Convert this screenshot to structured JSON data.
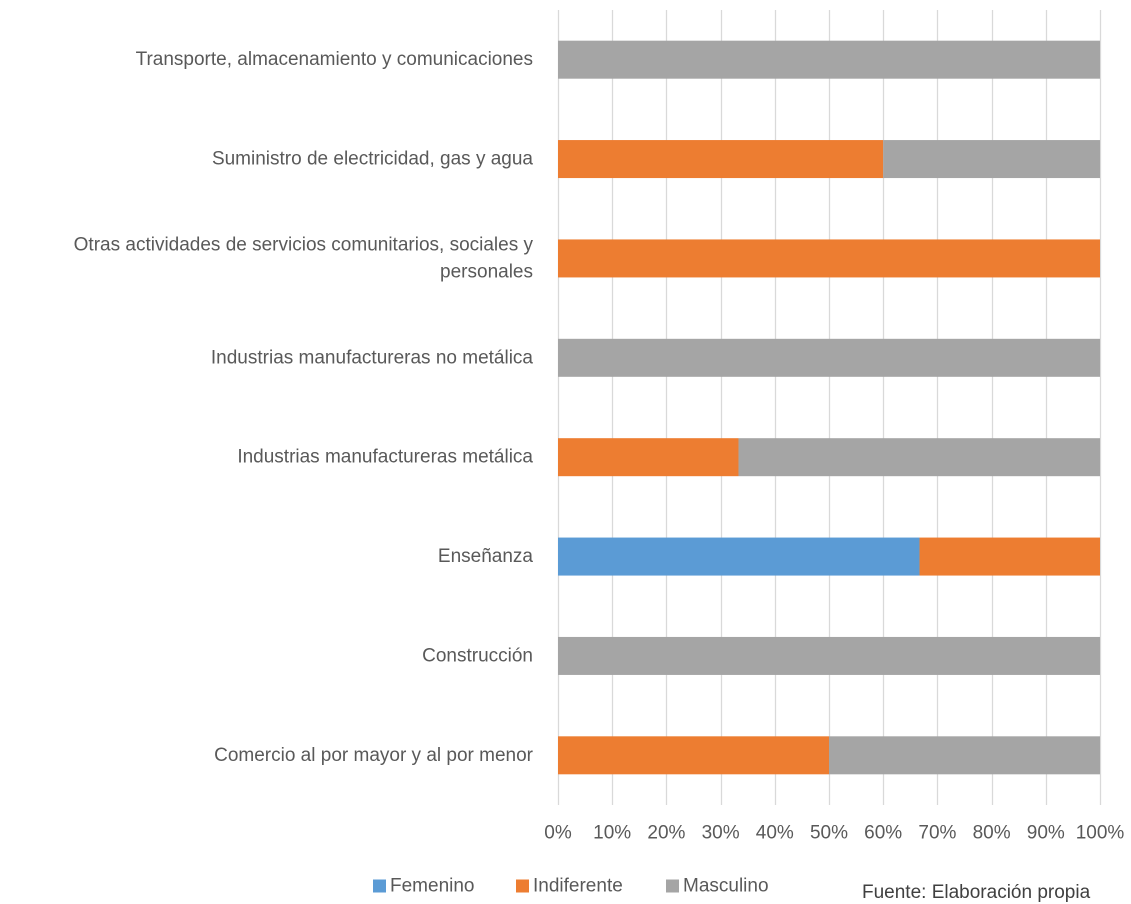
{
  "chart_data": {
    "type": "bar",
    "orientation": "horizontal",
    "stacked": "percent",
    "categories": [
      [
        "Transporte, almacenamiento y comunicaciones"
      ],
      [
        "Suministro de electricidad, gas y agua"
      ],
      [
        "Otras actividades de servicios comunitarios, sociales y",
        "personales"
      ],
      [
        "Industrias manufactureras no metálica"
      ],
      [
        "Industrias manufactureras metálica"
      ],
      [
        "Enseñanza"
      ],
      [
        "Construcción"
      ],
      [
        "Comercio al por mayor y al por menor"
      ]
    ],
    "series": [
      {
        "name": "Femenino",
        "color": "#5B9BD5",
        "values": [
          0,
          0,
          0,
          0,
          0,
          66.7,
          0,
          0
        ]
      },
      {
        "name": "Indiferente",
        "color": "#ED7D31",
        "values": [
          0,
          60,
          100,
          0,
          33.3,
          33.3,
          0,
          50
        ]
      },
      {
        "name": "Masculino",
        "color": "#A5A5A5",
        "values": [
          100,
          40,
          0,
          100,
          66.7,
          0,
          100,
          50
        ]
      }
    ],
    "x_ticks": [
      "0%",
      "10%",
      "20%",
      "30%",
      "40%",
      "50%",
      "60%",
      "70%",
      "80%",
      "90%",
      "100%"
    ],
    "xlim": [
      0,
      100
    ],
    "grid": true,
    "legend_position": "bottom"
  },
  "footer": {
    "source": "Fuente: Elaboración propia"
  }
}
